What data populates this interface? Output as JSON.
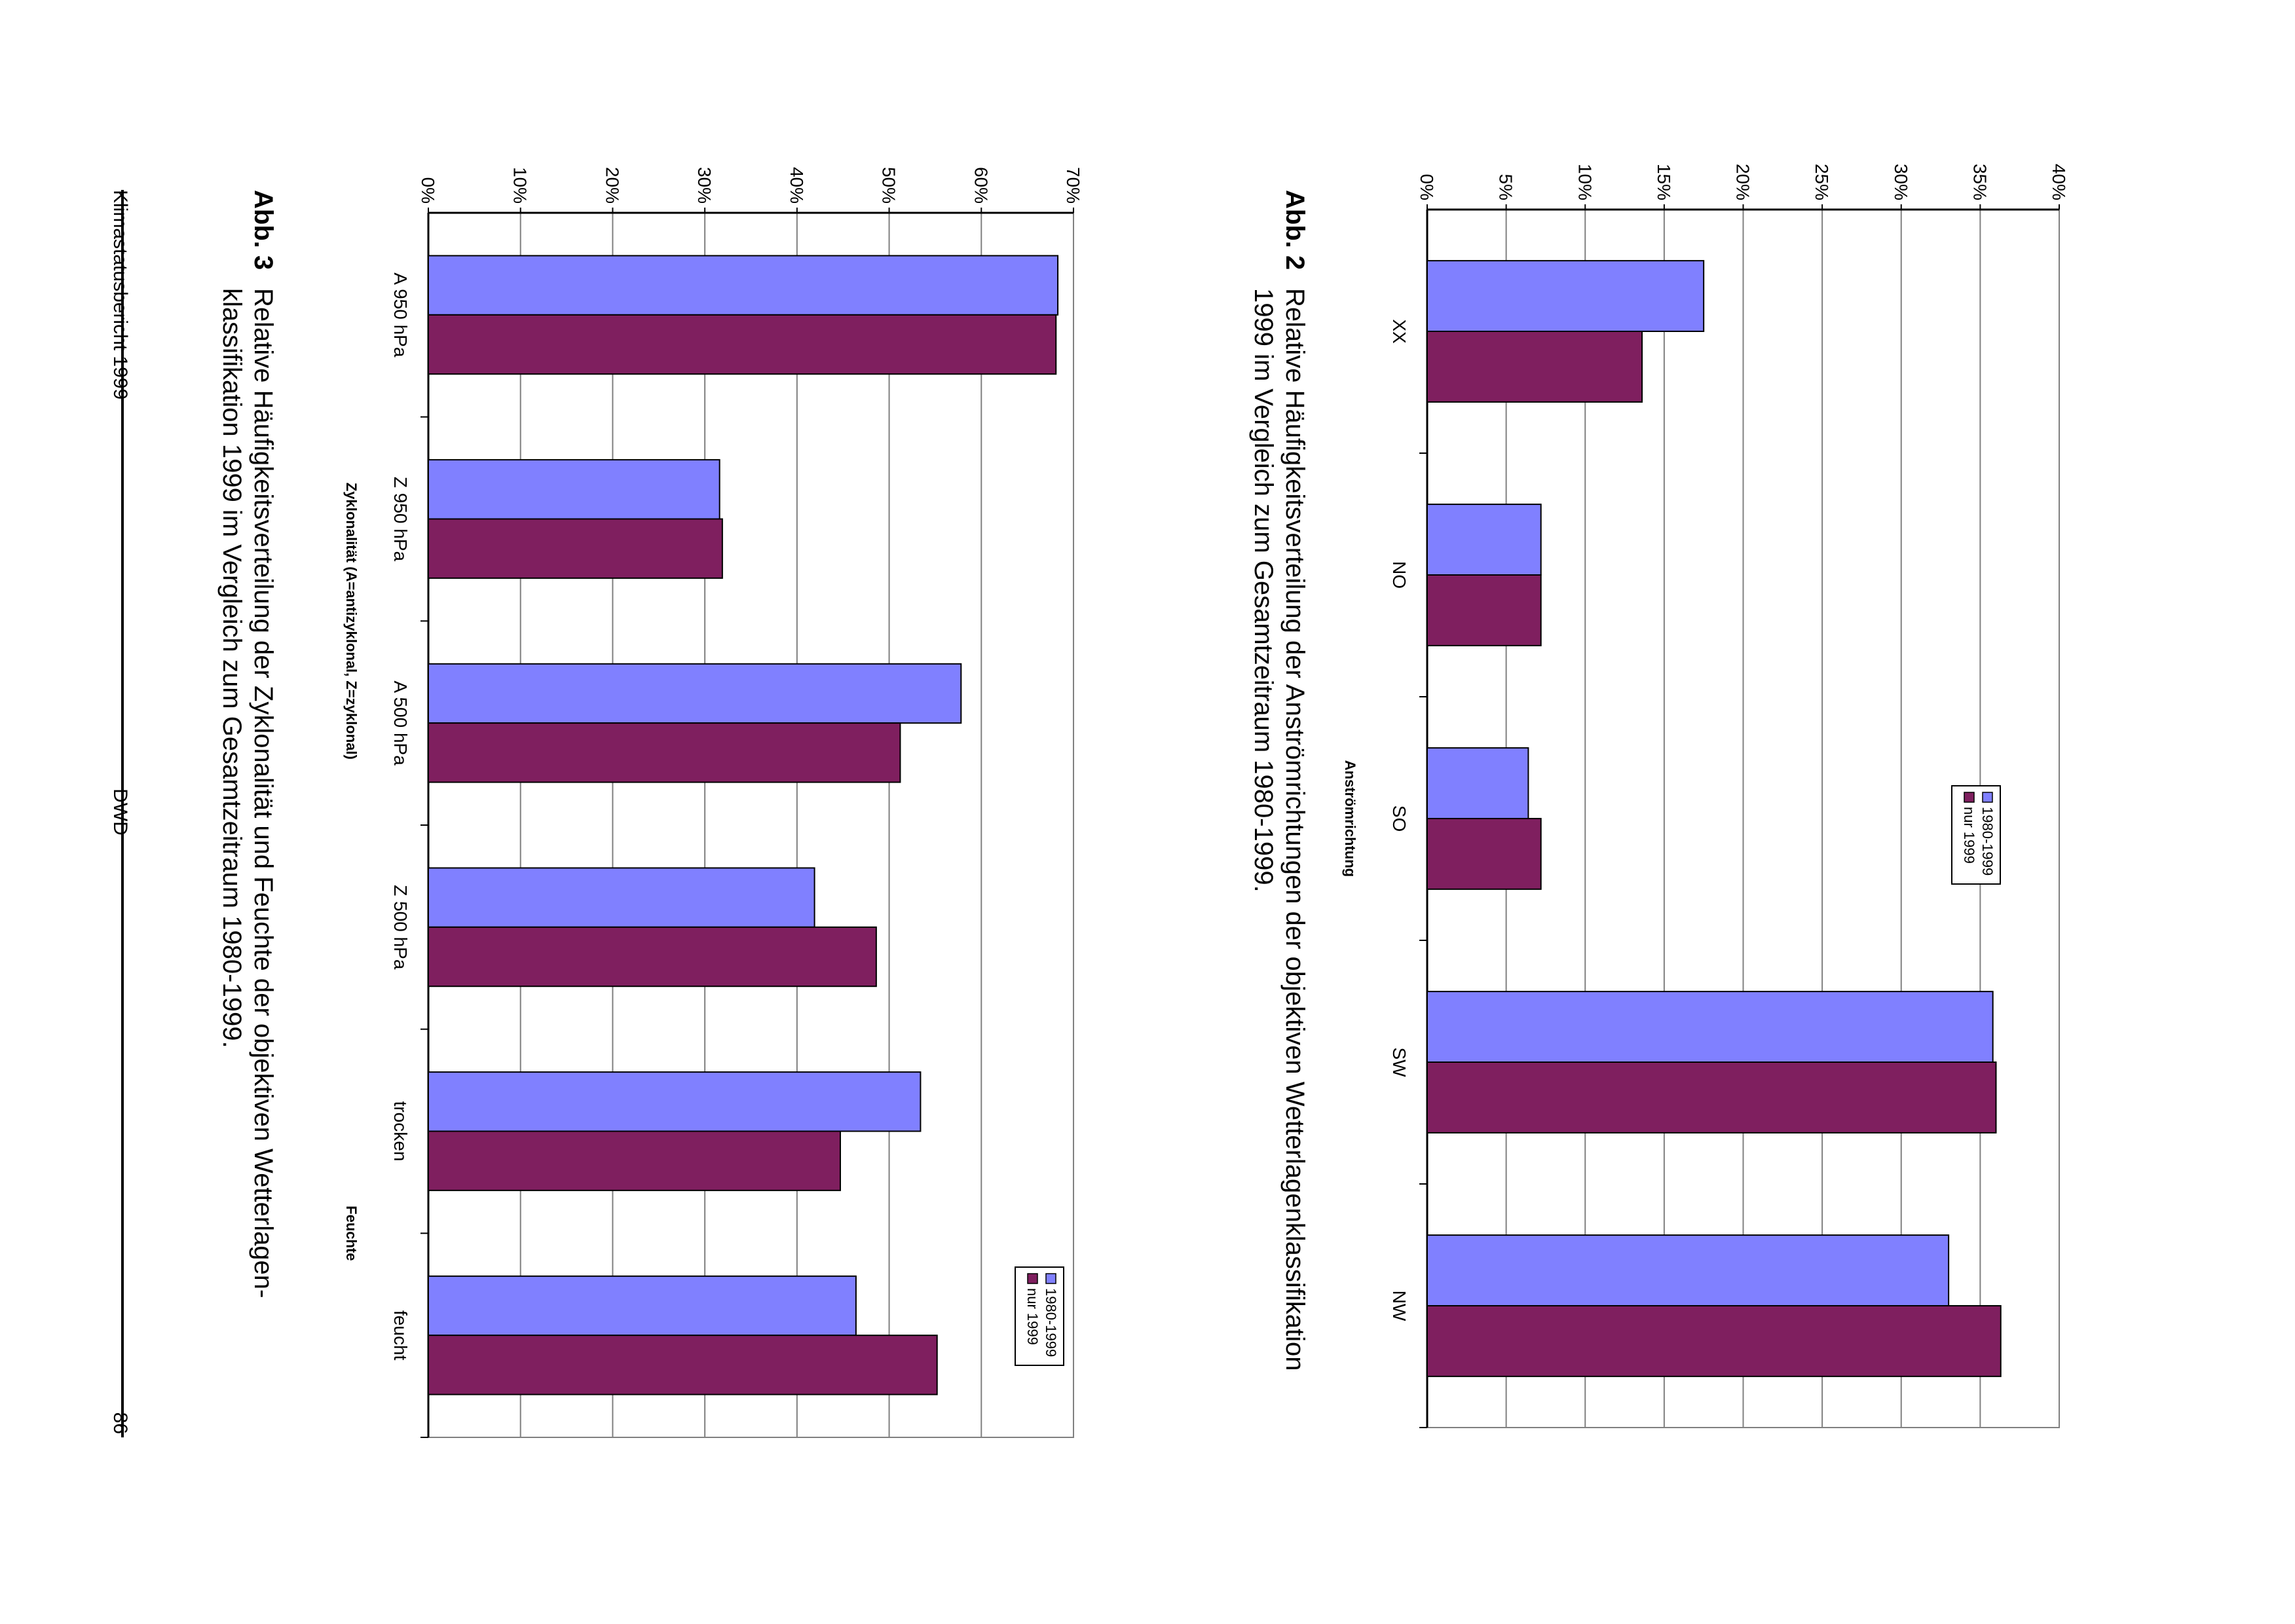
{
  "page": {
    "header_left": "Klimastatusbericht 1999",
    "header_center": "DWD",
    "page_number": "86"
  },
  "figures": [
    {
      "label": "Abb. 2",
      "caption_line1": "Relative Häufigkeitsverteilung der Anströmrichtungen der objektiven Wetterlagenklassifikation",
      "caption_line2": "1999 im Vergleich zum Gesamtzeitraum 1980-1999."
    },
    {
      "label": "Abb. 3",
      "caption_line1": "Relative Häufigkeitsverteilung der Zyklonalität und Feuchte der objektiven Wetterlagen-",
      "caption_line2": "klassifikation 1999 im Vergleich zum Gesamtzeitraum 1980-1999."
    }
  ],
  "colors": {
    "series_1980_1999": "#8080ff",
    "series_nur_1999": "#7f1f5f",
    "grid": "#808080",
    "frame": "#808080"
  },
  "chart_data": [
    {
      "type": "bar",
      "orientation": "vertical (page rotated 90° clockwise)",
      "categories": [
        "XX",
        "NO",
        "SO",
        "SW",
        "NW"
      ],
      "series": [
        {
          "name": "1980-1999",
          "values": [
            17.5,
            7.2,
            6.4,
            35.8,
            33.0
          ]
        },
        {
          "name": "nur 1999",
          "values": [
            13.6,
            7.2,
            7.2,
            36.0,
            36.3
          ]
        }
      ],
      "xlabel": "Anströmrichtung",
      "ylabel": "",
      "ylim": [
        0,
        40
      ],
      "yticks": [
        "0%",
        "5%",
        "10%",
        "15%",
        "20%",
        "25%",
        "30%",
        "35%",
        "40%"
      ],
      "grid": true,
      "legend": "top-right",
      "group_titles": []
    },
    {
      "type": "bar",
      "orientation": "vertical (page rotated 90° clockwise)",
      "categories": [
        "A 950 hPa",
        "Z 950 hPa",
        "A 500 hPa",
        "Z 500 hPa",
        "trocken",
        "feucht"
      ],
      "series": [
        {
          "name": "1980-1999",
          "values": [
            68.3,
            31.6,
            57.8,
            41.9,
            53.4,
            46.4
          ]
        },
        {
          "name": "nur 1999",
          "values": [
            68.1,
            31.9,
            51.2,
            48.6,
            44.7,
            55.2
          ]
        }
      ],
      "xlabel": "",
      "group_labels": [
        {
          "text": "Zyklonalität (A=antizyklonal, Z=zyklonal)",
          "span": [
            0,
            3
          ]
        },
        {
          "text": "Feuchte",
          "span": [
            4,
            5
          ]
        }
      ],
      "ylabel": "",
      "ylim": [
        0,
        70
      ],
      "yticks": [
        "0%",
        "10%",
        "20%",
        "30%",
        "40%",
        "50%",
        "60%",
        "70%"
      ],
      "grid": true,
      "legend": "top-right"
    }
  ]
}
